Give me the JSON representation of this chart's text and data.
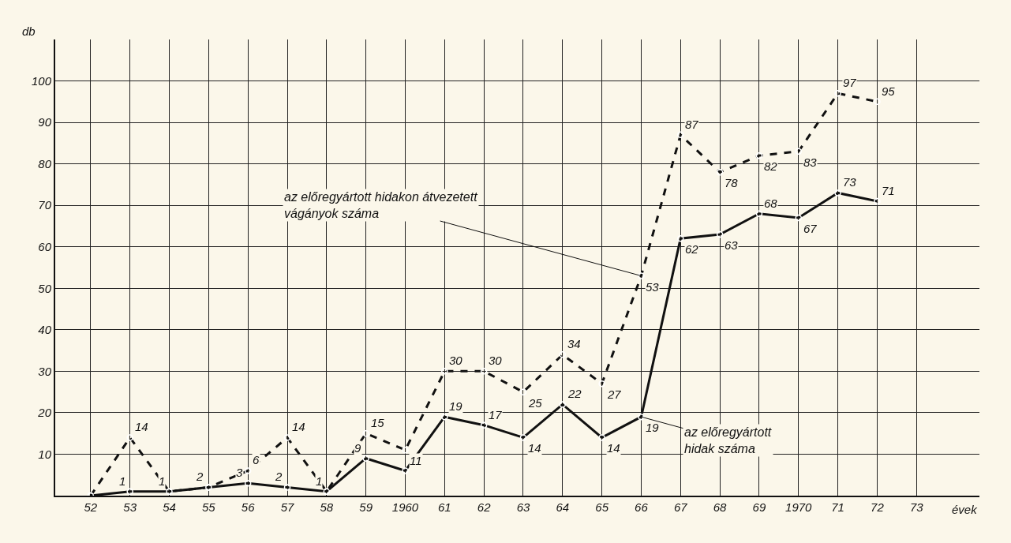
{
  "chart_data": {
    "type": "line",
    "xlabel": "évek",
    "ylabel": "db",
    "categories": [
      "52",
      "53",
      "54",
      "55",
      "56",
      "57",
      "58",
      "59",
      "1960",
      "61",
      "62",
      "63",
      "64",
      "65",
      "66",
      "67",
      "68",
      "69",
      "1970",
      "71",
      "72",
      "73"
    ],
    "series": [
      {
        "color": "#111111",
        "line_style": "dashed",
        "values": [
          0,
          14,
          1,
          2,
          6,
          14,
          1,
          15,
          11,
          30,
          30,
          25,
          34,
          27,
          53,
          87,
          78,
          82,
          83,
          97,
          95,
          null
        ],
        "value_labels": [
          null,
          "14",
          null,
          null,
          "6",
          "14",
          null,
          "15",
          "11",
          "30",
          "30",
          "25",
          "34",
          "27",
          "53",
          "87",
          "78",
          "82",
          "83",
          "97",
          "95",
          null
        ]
      },
      {
        "color": "#111111",
        "line_style": "solid",
        "values": [
          0,
          1,
          1,
          2,
          3,
          2,
          1,
          9,
          6,
          19,
          17,
          14,
          22,
          14,
          19,
          62,
          63,
          68,
          67,
          73,
          71,
          null
        ],
        "value_labels": [
          null,
          "1",
          "1",
          "2",
          "3",
          "2",
          "1",
          "9",
          null,
          "19",
          "17",
          "14",
          "22",
          "14",
          "19",
          "62",
          "63",
          "68",
          "67",
          "73",
          "71",
          null
        ]
      }
    ],
    "ylim": [
      0,
      110
    ],
    "yticks": [
      10,
      20,
      30,
      40,
      50,
      60,
      70,
      80,
      90,
      100
    ],
    "grid": true,
    "marker": "circle",
    "annotations": [
      {
        "text": "az előregyártott hidakon átvezetett\nvágányok száma",
        "x": "66",
        "y": 53
      },
      {
        "text": "az előregyártott\nhidak száma",
        "x": "66",
        "y": 19
      }
    ]
  }
}
